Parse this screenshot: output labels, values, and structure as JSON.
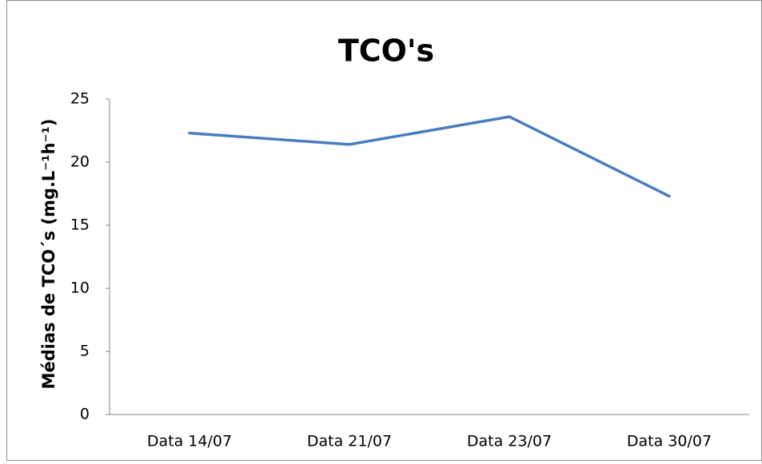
{
  "chart_data": {
    "type": "line",
    "title": "TCO's",
    "y_label": "Médias de TCO´s (mg.L⁻¹h⁻¹)",
    "categories": [
      "Data 14/07",
      "Data 21/07",
      "Data 23/07",
      "Data 30/07"
    ],
    "values": [
      22.3,
      21.4,
      23.6,
      17.3
    ],
    "color": "#4a7ebb",
    "ylim": [
      0,
      25
    ],
    "yticks": [
      0,
      5,
      10,
      15,
      20,
      25
    ],
    "grid": false
  }
}
